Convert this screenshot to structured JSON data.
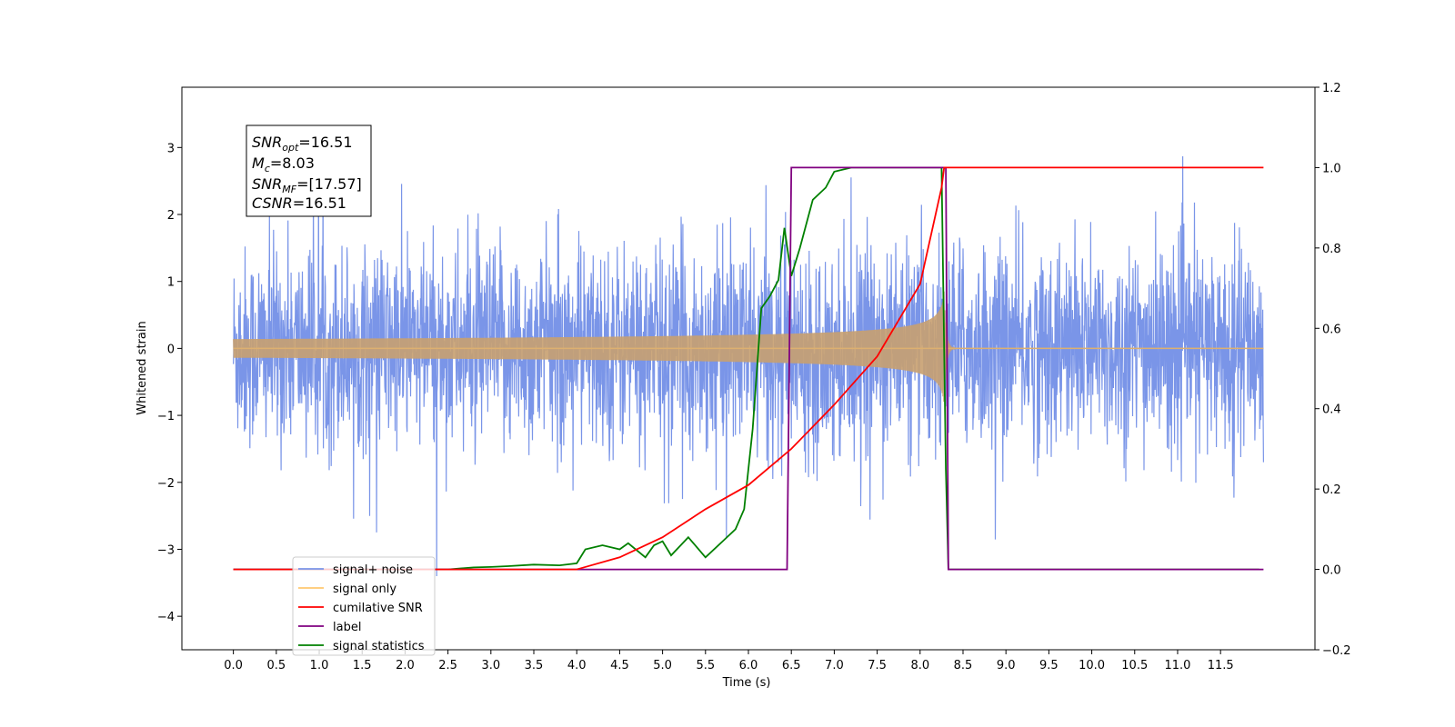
{
  "chart_data": {
    "type": "line",
    "xlabel": "Time (s)",
    "ylabel": "Whitened strain",
    "xlim": [
      -0.6,
      12.6
    ],
    "ylim_left": [
      -4.5,
      3.9
    ],
    "ylim_right": [
      -0.2,
      1.2
    ],
    "x_ticks": [
      "0.0",
      "0.5",
      "1.0",
      "1.5",
      "2.0",
      "2.5",
      "3.0",
      "3.5",
      "4.0",
      "4.5",
      "5.0",
      "5.5",
      "6.0",
      "6.5",
      "7.0",
      "7.5",
      "8.0",
      "8.5",
      "9.0",
      "9.5",
      "10.0",
      "10.5",
      "11.0",
      "11.5"
    ],
    "y_ticks_left": [
      "3",
      "2",
      "1",
      "0",
      "−1",
      "−2",
      "−3",
      "−4"
    ],
    "y_ticks_right": [
      "1.2",
      "1.0",
      "0.8",
      "0.6",
      "0.4",
      "0.2",
      "0.0",
      "−0.2"
    ],
    "annotation": {
      "snr_opt": "=16.51",
      "mc": "=8.03",
      "snr_mf": "=[17.57]",
      "csnr": "=16.51"
    },
    "series": [
      {
        "name": "signal+ noise",
        "color": "#7a95e8",
        "axis": "left",
        "description": "whitened noise, amplitude ~±2 with spikes to ~3.5, from 0.0 to 12.0 s"
      },
      {
        "name": "signal only",
        "color": "#ffc870",
        "axis": "left",
        "merger_time": 8.28,
        "peak_amplitude": 0.85
      },
      {
        "name": "cumilative SNR",
        "color": "#ff0000",
        "axis": "right",
        "points": [
          [
            0.0,
            0.0
          ],
          [
            4.0,
            0.0
          ],
          [
            4.5,
            0.03
          ],
          [
            5.0,
            0.08
          ],
          [
            5.5,
            0.15
          ],
          [
            6.0,
            0.21
          ],
          [
            6.5,
            0.3
          ],
          [
            7.0,
            0.41
          ],
          [
            7.5,
            0.53
          ],
          [
            8.0,
            0.71
          ],
          [
            8.25,
            0.95
          ],
          [
            8.28,
            1.0
          ],
          [
            12.0,
            1.0
          ]
        ]
      },
      {
        "name": "label",
        "color": "#800080",
        "axis": "right",
        "points": [
          [
            0.0,
            0.0
          ],
          [
            6.45,
            0.0
          ],
          [
            6.5,
            1.0
          ],
          [
            8.3,
            1.0
          ],
          [
            8.33,
            0.0
          ],
          [
            12.0,
            0.0
          ]
        ]
      },
      {
        "name": "signal statistics",
        "color": "#008000",
        "axis": "right",
        "points": [
          [
            0.0,
            0.0
          ],
          [
            2.5,
            0.0
          ],
          [
            2.8,
            0.005
          ],
          [
            3.0,
            0.006
          ],
          [
            3.2,
            0.008
          ],
          [
            3.5,
            0.012
          ],
          [
            3.8,
            0.01
          ],
          [
            4.0,
            0.015
          ],
          [
            4.1,
            0.05
          ],
          [
            4.3,
            0.06
          ],
          [
            4.5,
            0.05
          ],
          [
            4.6,
            0.065
          ],
          [
            4.8,
            0.03
          ],
          [
            4.9,
            0.06
          ],
          [
            5.0,
            0.07
          ],
          [
            5.1,
            0.035
          ],
          [
            5.3,
            0.08
          ],
          [
            5.5,
            0.03
          ],
          [
            5.7,
            0.07
          ],
          [
            5.85,
            0.1
          ],
          [
            5.95,
            0.15
          ],
          [
            6.05,
            0.35
          ],
          [
            6.15,
            0.65
          ],
          [
            6.25,
            0.68
          ],
          [
            6.35,
            0.72
          ],
          [
            6.42,
            0.85
          ],
          [
            6.5,
            0.73
          ],
          [
            6.6,
            0.8
          ],
          [
            6.75,
            0.92
          ],
          [
            6.9,
            0.95
          ],
          [
            7.0,
            0.99
          ],
          [
            7.2,
            1.0
          ],
          [
            8.25,
            1.0
          ],
          [
            8.3,
            0.25
          ],
          [
            8.33,
            0.0
          ],
          [
            11.95,
            0.0
          ]
        ]
      }
    ],
    "legend_position": "lower-left"
  }
}
